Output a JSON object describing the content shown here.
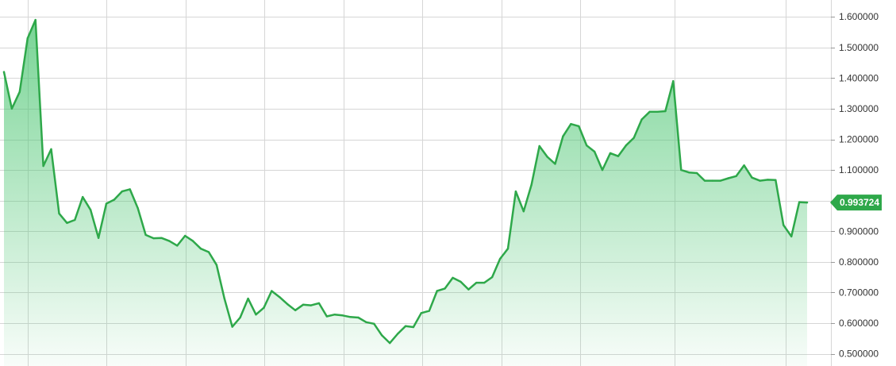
{
  "chart_data": {
    "type": "area",
    "title": "",
    "xlabel": "",
    "ylabel": "",
    "ylim": [
      0.46,
      1.655
    ],
    "grid": true,
    "y_ticks": [
      "1.600000",
      "1.500000",
      "1.400000",
      "1.300000",
      "1.200000",
      "1.100000",
      "1.000000",
      "0.900000",
      "0.800000",
      "0.700000",
      "0.600000",
      "0.500000"
    ],
    "y_tick_values": [
      1.6,
      1.5,
      1.4,
      1.3,
      1.2,
      1.1,
      1.0,
      0.9,
      0.8,
      0.7,
      0.6,
      0.5
    ],
    "current_price": 0.993724,
    "current_price_label": "0.993724",
    "colors": {
      "line": "#2ea84a",
      "fill_top": "#4cc672",
      "price_tag": "#2ea84a",
      "grid": "#d6d6d6"
    },
    "series": [
      {
        "values": [
          1.42,
          1.3,
          1.355,
          1.53,
          1.59,
          1.113,
          1.168,
          0.958,
          0.927,
          0.937,
          1.012,
          0.97,
          0.878,
          0.99,
          1.003,
          1.03,
          1.037,
          0.975,
          0.888,
          0.877,
          0.878,
          0.868,
          0.853,
          0.885,
          0.868,
          0.843,
          0.832,
          0.79,
          0.68,
          0.588,
          0.618,
          0.68,
          0.628,
          0.65,
          0.705,
          0.685,
          0.662,
          0.642,
          0.66,
          0.658,
          0.665,
          0.622,
          0.628,
          0.625,
          0.62,
          0.618,
          0.603,
          0.598,
          0.56,
          0.535,
          0.565,
          0.59,
          0.587,
          0.633,
          0.64,
          0.705,
          0.713,
          0.748,
          0.735,
          0.71,
          0.732,
          0.732,
          0.75,
          0.81,
          0.843,
          1.03,
          0.965,
          1.052,
          1.178,
          1.143,
          1.12,
          1.21,
          1.25,
          1.243,
          1.18,
          1.16,
          1.1,
          1.155,
          1.145,
          1.18,
          1.205,
          1.265,
          1.29,
          1.29,
          1.292,
          1.39,
          1.1,
          1.092,
          1.09,
          1.065,
          1.065,
          1.065,
          1.073,
          1.08,
          1.115,
          1.075,
          1.065,
          1.068,
          1.067,
          0.92,
          0.883,
          0.995,
          0.993724
        ]
      }
    ]
  }
}
